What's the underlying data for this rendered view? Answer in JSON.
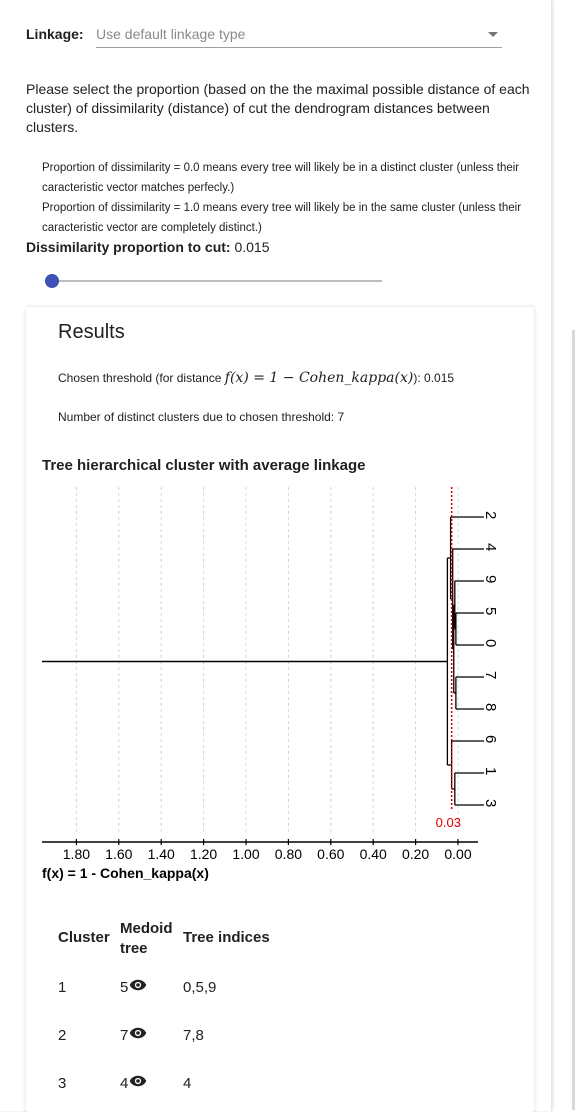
{
  "linkage": {
    "label": "Linkage:",
    "placeholder": "Use default linkage type"
  },
  "instruction": "Please select the proportion (based on the the maximal possible distance of each cluster) of dissimilarity (distance) of cut the dendrogram distances between clusters.",
  "explanations": [
    "Proportion of dissimilarity = 0.0 means every tree will likely be in a distinct cluster (unless their caracteristic vector matches perfecly.)",
    "Proportion of dissimilarity = 1.0 means every tree will likely be in the same cluster (unless their caracteristic vector are completely distinct.)"
  ],
  "dissimilarity": {
    "label": "Dissimilarity proportion to cut:",
    "value": "0.015",
    "slider_fraction": 0.015
  },
  "results": {
    "title": "Results",
    "threshold_prefix": "Chosen threshold (for distance",
    "threshold_suffix": "): 0.015",
    "clusters_text": "Number of distinct clusters due to chosen threshold: 7",
    "chart_title": "Tree hierarchical cluster with average linkage"
  },
  "chart_data": {
    "type": "dendrogram",
    "title": "Tree hierarchical cluster with average linkage",
    "xlabel": "f(x) = 1 - Cohen_kappa(x)",
    "x_ticks": [
      "1.80",
      "1.60",
      "1.40",
      "1.20",
      "1.00",
      "0.80",
      "0.60",
      "0.40",
      "0.20",
      "0.00"
    ],
    "x_tick_values": [
      1.8,
      1.6,
      1.4,
      1.2,
      1.0,
      0.8,
      0.6,
      0.4,
      0.2,
      0.0
    ],
    "xlim": [
      2.0,
      0.0
    ],
    "x_reversed": true,
    "grid": true,
    "leaves": [
      "2",
      "4",
      "9",
      "5",
      "0",
      "7",
      "8",
      "6",
      "1",
      "3"
    ],
    "threshold": 0.03,
    "threshold_label": "0.03",
    "threshold_color": "#e00000",
    "root_distance": 1.95,
    "merges": [
      {
        "a": 3,
        "b": 4,
        "distance": 0.01
      },
      {
        "a": 2,
        "b": "m0",
        "distance": 0.015
      },
      {
        "a": 5,
        "b": 6,
        "distance": 0.01
      },
      {
        "a": "m1",
        "b": "m2",
        "distance": 0.02
      },
      {
        "a": 1,
        "b": "m3",
        "distance": 0.025
      },
      {
        "a": 0,
        "b": "m4",
        "distance": 0.035
      },
      {
        "a": 8,
        "b": 9,
        "distance": 0.015
      },
      {
        "a": 7,
        "b": "m6",
        "distance": 0.03
      },
      {
        "a": "m5",
        "b": "m7",
        "distance": 0.05
      }
    ]
  },
  "table": {
    "headers": {
      "cluster": "Cluster",
      "medoid_line1": "Medoid",
      "medoid_line2": "tree",
      "indices": "Tree indices"
    },
    "rows": [
      {
        "cluster": "1",
        "medoid": "5",
        "indices": "0,5,9"
      },
      {
        "cluster": "2",
        "medoid": "7",
        "indices": "7,8"
      },
      {
        "cluster": "3",
        "medoid": "4",
        "indices": "4"
      }
    ],
    "eye_icon": "eye-icon"
  }
}
